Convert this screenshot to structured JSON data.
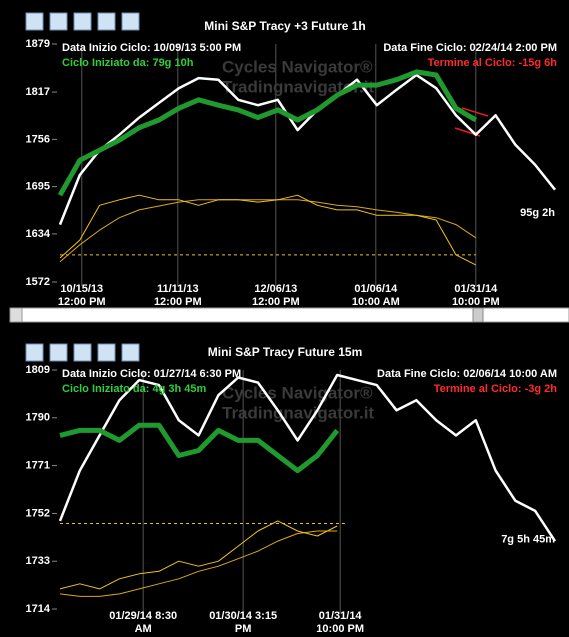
{
  "chart_data": [
    {
      "type": "line",
      "title": "Mini S&P  Tracy +3  Future 1h",
      "annotations": {
        "start_date": "Data Inizio Ciclo: 10/09/13 5:00 PM",
        "elapsed": "Ciclo Iniziato da: 79g 10h",
        "end_date": "Data Fine Ciclo: 02/24/14 2:00 PM",
        "remaining": "Termine al Ciclo: -15g 6h",
        "projection": "95g 2h"
      },
      "watermark": [
        "Cycles Navigator®",
        "Tradingnavigator.it"
      ],
      "x": [
        0,
        4,
        8,
        12,
        16,
        20,
        24,
        28,
        32,
        36,
        40,
        44,
        48,
        52,
        56,
        60,
        64,
        68,
        72,
        76,
        80,
        84,
        88,
        92,
        96,
        100
      ],
      "xlim": [
        0,
        100
      ],
      "xticks": [
        {
          "value": 4.4,
          "label": "10/15/13 12:00 PM"
        },
        {
          "value": 23.8,
          "label": "11/11/13 12:00 PM"
        },
        {
          "value": 43.6,
          "label": "12/06/13 12:00 PM"
        },
        {
          "value": 63.8,
          "label": "01/06/14 10:00 AM"
        },
        {
          "value": 84,
          "label": "01/31/14 10:00 PM"
        }
      ],
      "ylim": [
        1572,
        1879
      ],
      "yticks": [
        1879,
        1817,
        1756,
        1695,
        1634,
        1572
      ],
      "reference_line": {
        "y": 1607,
        "xlim": [
          0,
          84
        ]
      },
      "series": [
        {
          "color": "#ffffff",
          "width": 2.5,
          "values": [
            1646,
            1710,
            1742,
            1762,
            1784,
            1803,
            1822,
            1835,
            1833,
            1807,
            1800,
            1807,
            1768,
            1794,
            1813,
            1833,
            1800,
            1820,
            1839,
            1822,
            1787,
            1762,
            1787,
            1749,
            1723,
            1691
          ]
        },
        {
          "color": "#1f9a2e",
          "width": 5,
          "values": [
            1684,
            1729,
            1742,
            1755,
            1771,
            1781,
            1796,
            1807,
            1800,
            1794,
            1784,
            1794,
            1781,
            1794,
            1813,
            1826,
            1826,
            1833,
            1843,
            1839,
            1796,
            1781,
            null,
            null,
            null,
            null
          ]
        },
        {
          "color": "#f0c419",
          "width": 1,
          "values": [
            1603,
            1626,
            1671,
            1678,
            1684,
            1678,
            1678,
            1671,
            1678,
            1678,
            1675,
            1678,
            1684,
            1671,
            1665,
            1665,
            1658,
            1658,
            1658,
            1652,
            1607,
            1594,
            null,
            null,
            null,
            null
          ]
        },
        {
          "color": "#d9a81c",
          "width": 1,
          "values": [
            1598,
            1620,
            1639,
            1655,
            1665,
            1670,
            1675,
            1678,
            1678,
            1678,
            1678,
            1678,
            1678,
            1675,
            1671,
            1669,
            1665,
            1662,
            1658,
            1655,
            1646,
            1629,
            null,
            null,
            null,
            null
          ]
        }
      ]
    },
    {
      "type": "line",
      "title": "Mini S&P  Tracy  Future 15m",
      "annotations": {
        "start_date": "Data Inizio Ciclo: 01/27/14 6:30 PM",
        "elapsed": "Ciclo Iniziato da: 4g 3h 45m",
        "end_date": "Data Fine Ciclo: 02/06/14 10:00 AM",
        "remaining": "Termine al Ciclo: -3g 2h",
        "projection": "7g 5h 45m"
      },
      "watermark": [
        "Cycles Navigator®",
        "Tradingnavigator.it"
      ],
      "x": [
        0,
        4,
        8,
        12,
        16,
        20,
        24,
        28,
        32,
        36,
        40,
        44,
        48,
        52,
        56,
        60,
        64,
        68,
        72,
        76,
        80,
        84,
        88,
        92,
        96,
        100
      ],
      "xlim": [
        0,
        100
      ],
      "xticks": [
        {
          "value": 16.8,
          "label": "01/29/14 8:30 AM"
        },
        {
          "value": 37,
          "label": "01/30/14 3:15 PM"
        },
        {
          "value": 56.6,
          "label": "01/31/14 10:00 PM"
        }
      ],
      "ylim": [
        1714,
        1809
      ],
      "yticks": [
        1809,
        1790,
        1771,
        1752,
        1733,
        1714
      ],
      "reference_line": {
        "y": 1748,
        "xlim": [
          0,
          57.6
        ]
      },
      "series": [
        {
          "color": "#ffffff",
          "width": 2.5,
          "values": [
            1749,
            1769,
            1783,
            1797,
            1805,
            1803,
            1789,
            1783,
            1799,
            1806,
            1804,
            1793,
            1781,
            1793,
            1807,
            1805,
            1803,
            1793,
            1797,
            1789,
            1783,
            1789,
            1769,
            1757,
            1753,
            1741
          ]
        },
        {
          "color": "#1f9a2e",
          "width": 5,
          "values": [
            1783,
            1785,
            1785,
            1781,
            1787,
            1787,
            1775,
            1777,
            1785,
            1781,
            1781,
            1775,
            1769,
            1775,
            1785,
            null,
            null,
            null,
            null,
            null,
            null,
            null,
            null,
            null,
            null,
            null
          ]
        },
        {
          "color": "#f0c419",
          "width": 1,
          "values": [
            1722,
            1724,
            1722,
            1726,
            1728,
            1729,
            1733,
            1731,
            1733,
            1739,
            1745,
            1749,
            1745,
            1743,
            1747,
            null,
            null,
            null,
            null,
            null,
            null,
            null,
            null,
            null,
            null,
            null
          ]
        },
        {
          "color": "#d9a81c",
          "width": 1,
          "values": [
            1720,
            1719,
            1719,
            1720,
            1722,
            1724,
            1726,
            1729,
            1731,
            1734,
            1737,
            1741,
            1744,
            1745,
            1745,
            null,
            null,
            null,
            null,
            null,
            null,
            null,
            null,
            null,
            null,
            null
          ]
        }
      ]
    }
  ]
}
